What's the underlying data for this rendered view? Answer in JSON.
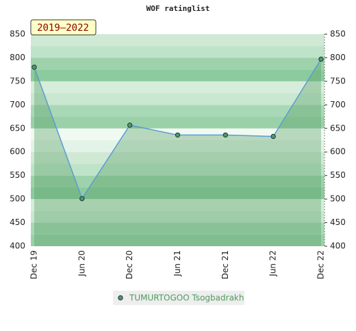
{
  "chart_data": {
    "type": "area",
    "title": "WOF ratinglist",
    "badge": "2019–2022",
    "categories": [
      "Dec 19",
      "Jun 20",
      "Dec 20",
      "Jun 21",
      "Dec 21",
      "Jun 22",
      "Dec 22"
    ],
    "series": [
      {
        "name": "TUMURTOGOO Tsogbadrakh",
        "color": "#4f9a5f",
        "line_color": "#5b9bd5",
        "values": [
          780,
          501,
          657,
          636,
          636,
          633,
          797
        ]
      }
    ],
    "ylim": [
      400,
      850
    ],
    "yticks": [
      400,
      450,
      500,
      550,
      600,
      650,
      700,
      750,
      800,
      850
    ],
    "grid": true
  }
}
